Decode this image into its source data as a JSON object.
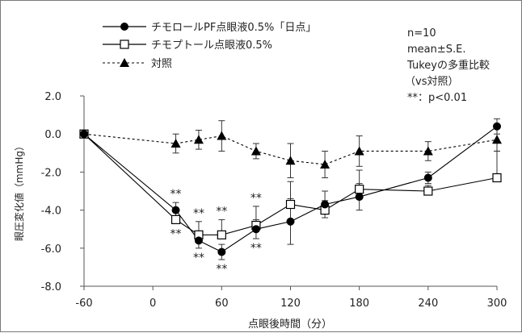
{
  "chart_data": {
    "type": "line",
    "xlabel": "点眼後時間（分）",
    "ylabel": "眼圧変化値（mmHg）",
    "xlim": [
      -60,
      300
    ],
    "ylim": [
      -8,
      2
    ],
    "xticks": [
      -60,
      0,
      60,
      120,
      180,
      240,
      300
    ],
    "xtick_labels": [
      "-60",
      "0",
      "60",
      "120",
      "180",
      "240",
      "300"
    ],
    "yticks": [
      2,
      0,
      -2,
      -4,
      -6,
      -8
    ],
    "ytick_labels": [
      "2.0",
      "0.0",
      "-2.0",
      "-4.0",
      "-6.0",
      "-8.0"
    ],
    "grid": false,
    "legend_position": "top-left",
    "annotation_lines": [
      "n=10",
      "mean±S.E.",
      "Tukeyの多重比較",
      "（vs対照）",
      "**：p<0.01"
    ],
    "significance_label": "**",
    "series": [
      {
        "name": "チモロールPF点眼液0.5%「日点」",
        "marker": "filled-circle",
        "line": "solid",
        "color": "#000000",
        "x": [
          -60,
          20,
          40,
          60,
          90,
          120,
          150,
          180,
          240,
          300
        ],
        "y": [
          0.0,
          -4.0,
          -5.6,
          -6.2,
          -5.0,
          -4.6,
          -3.7,
          -3.3,
          -2.3,
          0.4
        ],
        "err": [
          0.0,
          0.4,
          0.4,
          0.4,
          0.5,
          1.2,
          0.7,
          0.7,
          0.3,
          0.4
        ],
        "significant": [
          false,
          true,
          true,
          true,
          true,
          false,
          false,
          false,
          false,
          false
        ]
      },
      {
        "name": "チモプトール点眼液0.5%",
        "marker": "open-square",
        "line": "solid",
        "color": "#000000",
        "x": [
          -60,
          20,
          40,
          60,
          90,
          120,
          150,
          180,
          240,
          300
        ],
        "y": [
          0.0,
          -4.5,
          -5.3,
          -5.3,
          -4.8,
          -3.7,
          -4.0,
          -2.9,
          -3.0,
          -2.3
        ],
        "err": [
          0.0,
          0.5,
          0.7,
          0.8,
          1.0,
          1.2,
          0.5,
          1.0,
          0.3,
          1.4
        ],
        "significant": [
          false,
          true,
          true,
          true,
          true,
          false,
          false,
          false,
          false,
          false
        ]
      },
      {
        "name": "対照",
        "marker": "filled-triangle",
        "line": "dashed",
        "color": "#000000",
        "x": [
          -60,
          20,
          40,
          60,
          90,
          120,
          150,
          180,
          240,
          300
        ],
        "y": [
          0.0,
          -0.5,
          -0.3,
          -0.1,
          -0.9,
          -1.4,
          -1.6,
          -0.9,
          -0.9,
          -0.3
        ],
        "err": [
          0.0,
          0.5,
          0.5,
          0.8,
          0.4,
          0.9,
          0.7,
          0.8,
          0.5,
          0.6
        ],
        "significant": [
          false,
          false,
          false,
          false,
          false,
          false,
          false,
          false,
          false,
          false
        ]
      }
    ]
  }
}
